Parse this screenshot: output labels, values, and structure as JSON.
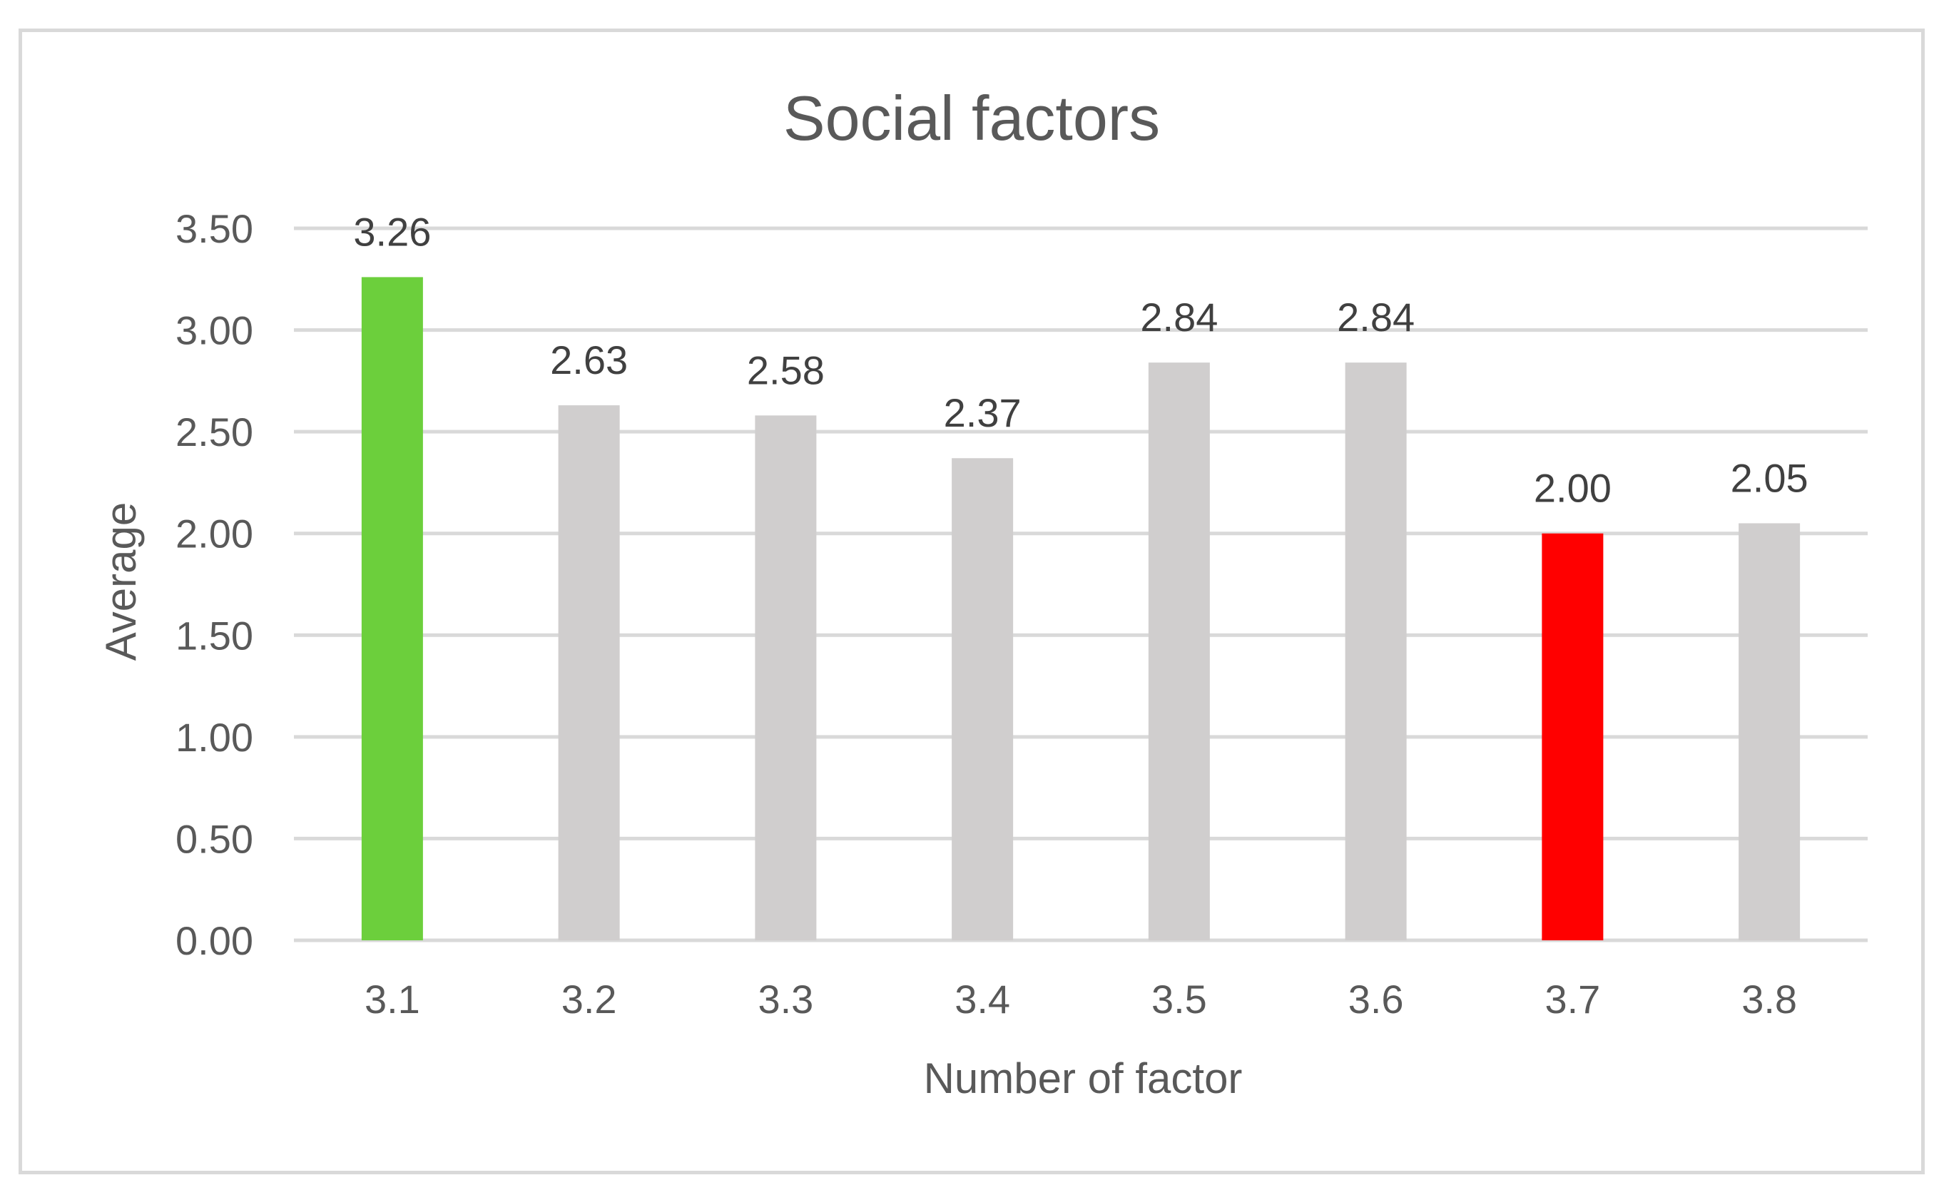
{
  "chart_data": {
    "type": "bar",
    "title": "Social factors",
    "xlabel": "Number of factor",
    "ylabel": "Average",
    "categories": [
      "3.1",
      "3.2",
      "3.3",
      "3.4",
      "3.5",
      "3.6",
      "3.7",
      "3.8"
    ],
    "values": [
      3.26,
      2.63,
      2.58,
      2.37,
      2.84,
      2.84,
      2.0,
      2.05
    ],
    "data_labels": [
      "3.26",
      "2.63",
      "2.58",
      "2.37",
      "2.84",
      "2.84",
      "2.00",
      "2.05"
    ],
    "ylim": [
      0,
      3.5
    ],
    "yticks": [
      0,
      0.5,
      1.0,
      1.5,
      2.0,
      2.5,
      3.0,
      3.5
    ],
    "ytick_labels": [
      "0.00",
      "0.50",
      "1.00",
      "1.50",
      "2.00",
      "2.50",
      "3.00",
      "3.50"
    ],
    "grid": true,
    "legend": "none",
    "colors": {
      "default_bar": "#d0cece",
      "highest_bar": "#6ccf3c",
      "lowest_bar": "#ff0000",
      "text": "#595959",
      "grid": "#d9d9d9"
    },
    "bar_colors": [
      "#6ccf3c",
      "#d0cece",
      "#d0cece",
      "#d0cece",
      "#d0cece",
      "#d0cece",
      "#ff0000",
      "#d0cece"
    ]
  }
}
